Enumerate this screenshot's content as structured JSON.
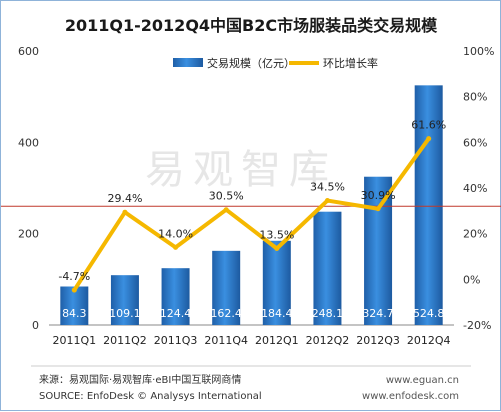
{
  "chart_data": {
    "type": "bar",
    "title": "2011Q1-2012Q4中国B2C市场服装品类交易规模",
    "categories": [
      "2011Q1",
      "2011Q2",
      "2011Q3",
      "2011Q4",
      "2012Q1",
      "2012Q2",
      "2012Q3",
      "2012Q4"
    ],
    "series": [
      {
        "name": "交易规模（亿元）",
        "type": "bar",
        "axis": "left",
        "color": "#2f7fd0",
        "values": [
          84.3,
          109.1,
          124.4,
          162.4,
          184.4,
          248.1,
          324.7,
          524.8
        ],
        "labels": [
          "84.3",
          "109.1",
          "124.4",
          "162.4",
          "184.4",
          "248.1",
          "324.7",
          "524.8"
        ]
      },
      {
        "name": "环比增长率",
        "type": "line",
        "axis": "right",
        "color": "#f5b800",
        "values": [
          -4.7,
          29.4,
          14.0,
          30.5,
          13.5,
          34.5,
          30.9,
          61.6
        ],
        "labels": [
          "-4.7%",
          "29.4%",
          "14.0%",
          "30.5%",
          "13.5%",
          "34.5%",
          "30.9%",
          "61.6%"
        ]
      }
    ],
    "y_left": {
      "min": 0,
      "max": 600,
      "ticks": [
        "0",
        "200",
        "400",
        "600"
      ]
    },
    "y_right": {
      "min": -20,
      "max": 100,
      "ticks": [
        "-20%",
        "0%",
        "20%",
        "40%",
        "60%",
        "80%",
        "100%"
      ]
    },
    "reference_line": {
      "axis": "right",
      "value": 32,
      "color": "#c0392b"
    },
    "legend_position": "top"
  },
  "watermark": "易观智库",
  "footer": {
    "source_cn": "来源：易观国际·易观智库·eBI中国互联网商情",
    "source_en": "SOURCE: EnfoDesk © Analysys International",
    "site1": "www.eguan.cn",
    "site2": "www.enfodesk.com"
  }
}
